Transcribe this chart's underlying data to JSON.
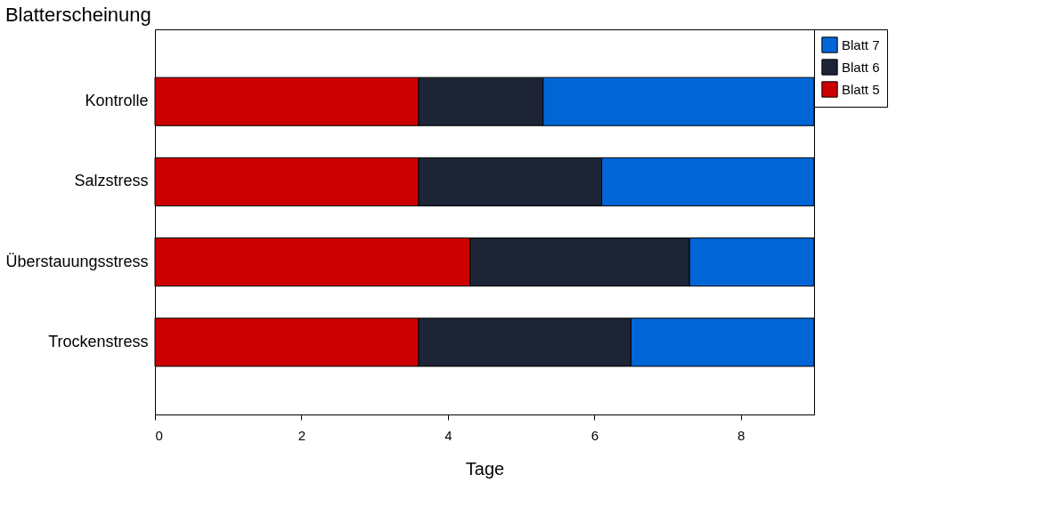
{
  "chart_data": {
    "type": "bar",
    "orientation": "horizontal",
    "stacked": true,
    "title": "Blatterscheinung",
    "xlabel": "Tage",
    "categories": [
      "Kontrolle",
      "Salzstress",
      "Überstauungsstress",
      "Trockenstress"
    ],
    "series": [
      {
        "name": "Blatt 5",
        "color": "#cc0000",
        "values": [
          3.6,
          3.6,
          4.3,
          3.6
        ]
      },
      {
        "name": "Blatt 6",
        "color": "#1c2436",
        "values": [
          1.7,
          2.5,
          3.0,
          2.9
        ]
      },
      {
        "name": "Blatt 7",
        "color": "#0066d6",
        "values": [
          3.7,
          2.9,
          1.7,
          2.5
        ]
      }
    ],
    "xlim": [
      0,
      9
    ],
    "xticks": [
      0,
      2,
      4,
      6,
      8
    ],
    "grid": false,
    "legend": "top right"
  }
}
